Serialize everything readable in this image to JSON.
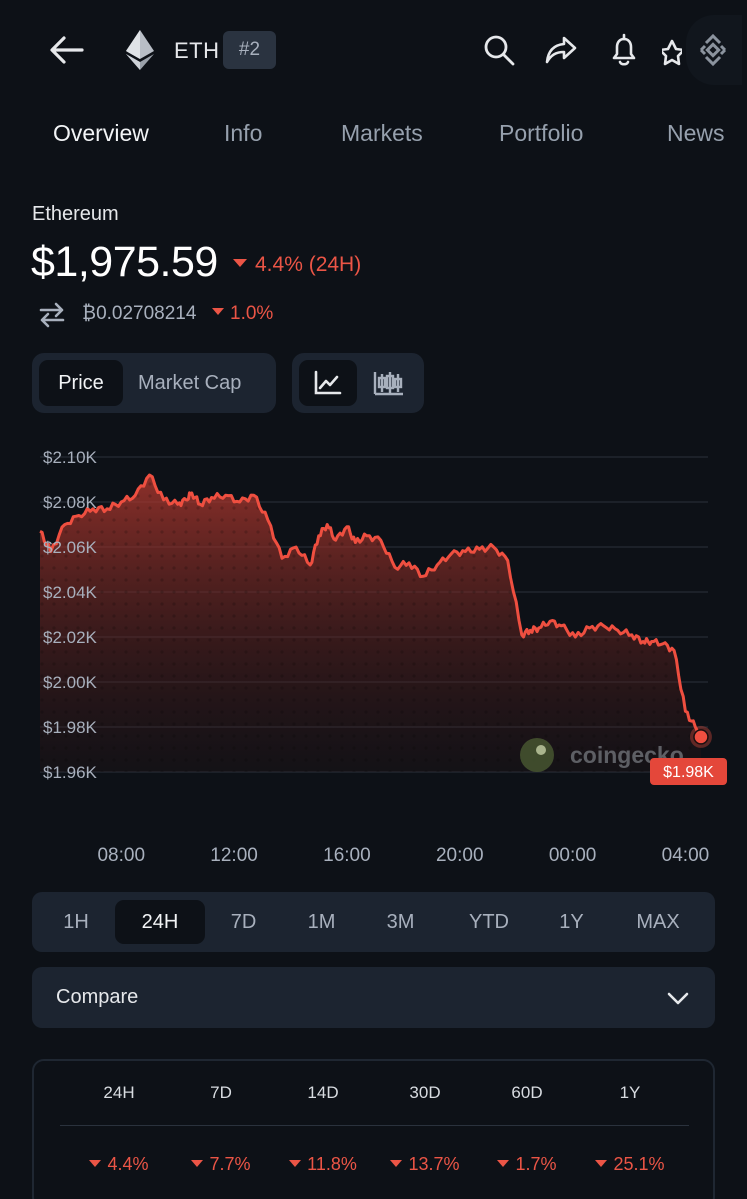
{
  "header": {
    "symbol": "ETH",
    "rank": "#2",
    "icons": [
      "back-arrow-icon",
      "ethereum-logo-icon",
      "search-icon",
      "share-icon",
      "bell-icon",
      "star-icon",
      "binance-icon"
    ]
  },
  "tabs": [
    "Overview",
    "Info",
    "Markets",
    "Portfolio",
    "News"
  ],
  "active_tab": "Overview",
  "coin": {
    "name": "Ethereum",
    "price": "$1,975.59",
    "change_24h": "4.4% (24H)",
    "btc_price": "₿0.02708214",
    "btc_change": "1.0%"
  },
  "view_toggle": {
    "price": "Price",
    "market_cap": "Market Cap",
    "icons": [
      "line-chart-icon",
      "candlestick-chart-icon"
    ]
  },
  "chart_data": {
    "type": "area",
    "ylim": [
      1960,
      2100
    ],
    "y_ticks": [
      "$2.10K",
      "$2.08K",
      "$2.06K",
      "$2.04K",
      "$2.02K",
      "$2.00K",
      "$1.98K",
      "$1.96K"
    ],
    "x_ticks": [
      "08:00",
      "12:00",
      "16:00",
      "20:00",
      "00:00",
      "04:00"
    ],
    "current_label": "$1.98K",
    "watermark": "coingecko",
    "series": [
      {
        "x": [
          5.12,
          5.5,
          6.0,
          6.5,
          7.0,
          7.5,
          8.0,
          8.5,
          9.0,
          9.5,
          10.0,
          10.3,
          10.5,
          10.8,
          11.2,
          11.7,
          12.2,
          12.7,
          13.2,
          13.7,
          14.2,
          14.7,
          15.0,
          15.3,
          15.6,
          16.0,
          16.3,
          16.7,
          17.2,
          17.7,
          18.2,
          18.7,
          19.2,
          19.7,
          20.2,
          20.7,
          21.2,
          21.7,
          22.2,
          22.5,
          22.8,
          23.2,
          23.6,
          24.1,
          24.6,
          25.1,
          25.6,
          26.1,
          26.5,
          26.8,
          27.2,
          27.6,
          28.0,
          28.35,
          28.55
        ],
        "y": [
          2067,
          2058,
          2070,
          2074,
          2077,
          2077,
          2080,
          2083,
          2092,
          2081,
          2079,
          2081,
          2084,
          2079,
          2082,
          2083,
          2080,
          2083,
          2072,
          2055,
          2060,
          2052,
          2065,
          2070,
          2063,
          2069,
          2062,
          2065,
          2063,
          2051,
          2053,
          2047,
          2052,
          2057,
          2058,
          2059,
          2060,
          2054,
          2021,
          2023,
          2024,
          2027,
          2025,
          2020,
          2024,
          2025,
          2023,
          2021,
          2018,
          2018,
          2017,
          2014,
          1987,
          1980,
          1975.59
        ]
      }
    ]
  },
  "time_ranges": [
    "1H",
    "24H",
    "7D",
    "1M",
    "3M",
    "YTD",
    "1Y",
    "MAX"
  ],
  "active_range": "24H",
  "compare": {
    "label": "Compare"
  },
  "performance": {
    "headers": [
      "24H",
      "7D",
      "14D",
      "30D",
      "60D",
      "1Y"
    ],
    "values": [
      "4.4%",
      "7.7%",
      "11.8%",
      "13.7%",
      "1.7%",
      "25.1%"
    ]
  },
  "colors": {
    "background": "#0d1117",
    "panel": "#1c2430",
    "negative": "#eb5546",
    "text": "#e6e8eb",
    "muted": "#96a0ad"
  }
}
